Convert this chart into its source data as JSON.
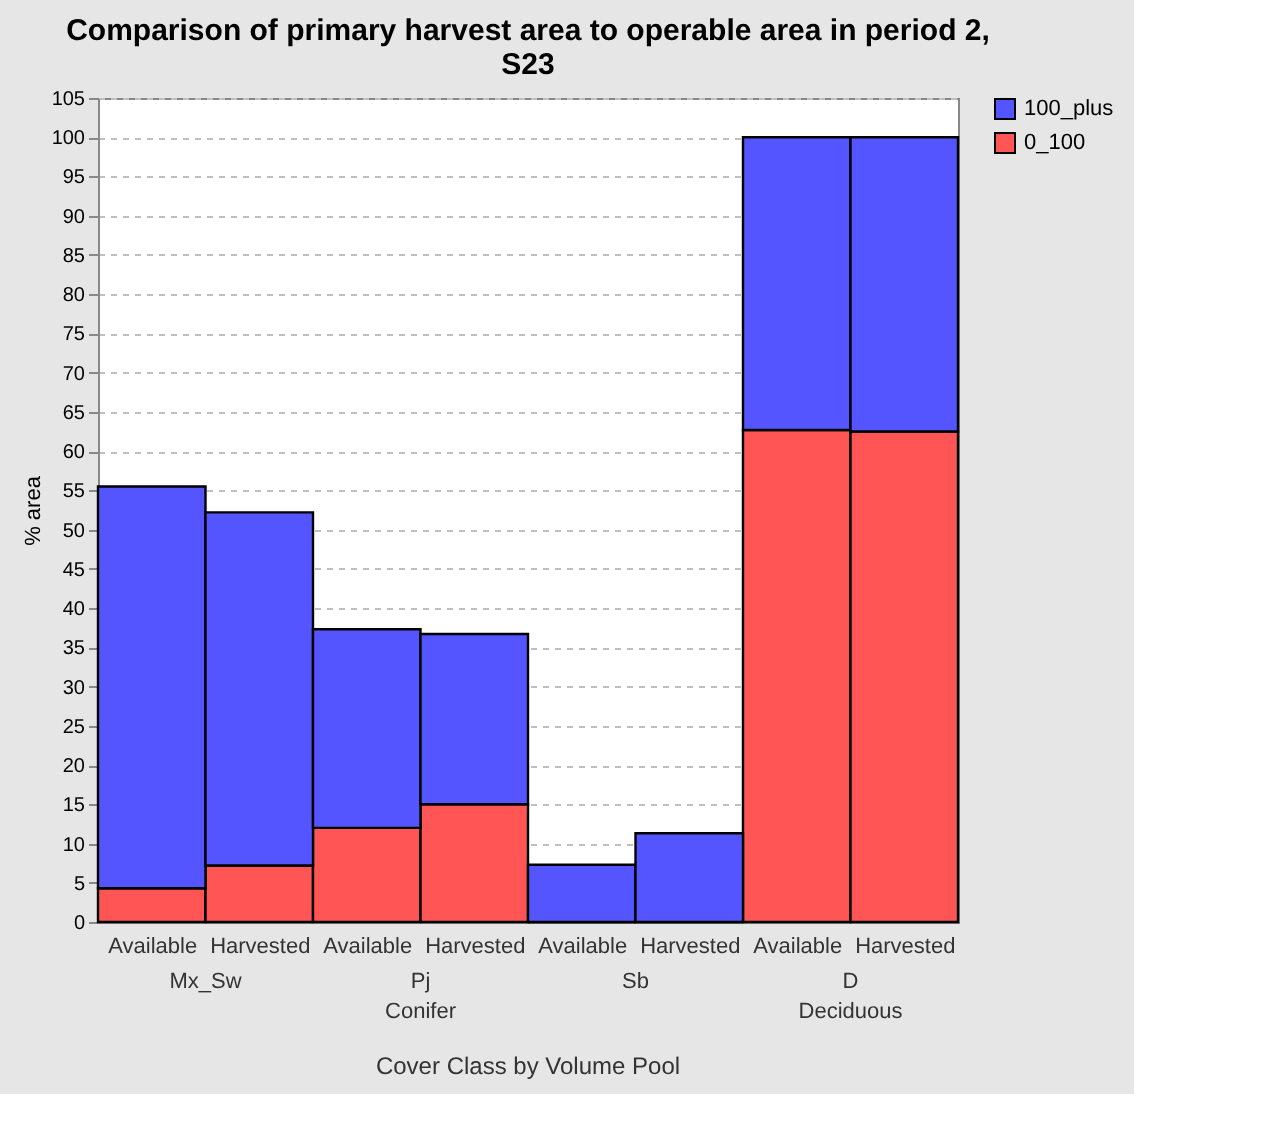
{
  "chart_data": {
    "type": "bar",
    "title": "Comparison of primary harvest area to operable area in period 2, S23",
    "xlabel": "Cover Class by Volume Pool",
    "ylabel": "% area",
    "categories": [
      "Available",
      "Harvested",
      "Available",
      "Harvested",
      "Available",
      "Harvested",
      "Available",
      "Harvested"
    ],
    "series": [
      {
        "name": "0_100",
        "color": "#ff5555",
        "values": [
          4.3,
          7.2,
          12.0,
          15.0,
          0,
          0,
          62.7,
          62.5
        ]
      },
      {
        "name": "100_plus",
        "color": "#5555ff",
        "values": [
          51.2,
          45.0,
          25.3,
          21.7,
          7.3,
          11.3,
          37.3,
          37.5
        ]
      }
    ],
    "stacked": true,
    "ylim": [
      0,
      105
    ],
    "yticks": [
      0,
      5,
      10,
      15,
      20,
      25,
      30,
      35,
      40,
      45,
      50,
      55,
      60,
      65,
      70,
      75,
      80,
      85,
      90,
      95,
      100,
      105
    ],
    "grid": "y",
    "legend": "right",
    "annotations": [
      "Mx_Sw",
      "Pj",
      "Sb",
      "D",
      "Conifer",
      "Deciduous"
    ]
  }
}
